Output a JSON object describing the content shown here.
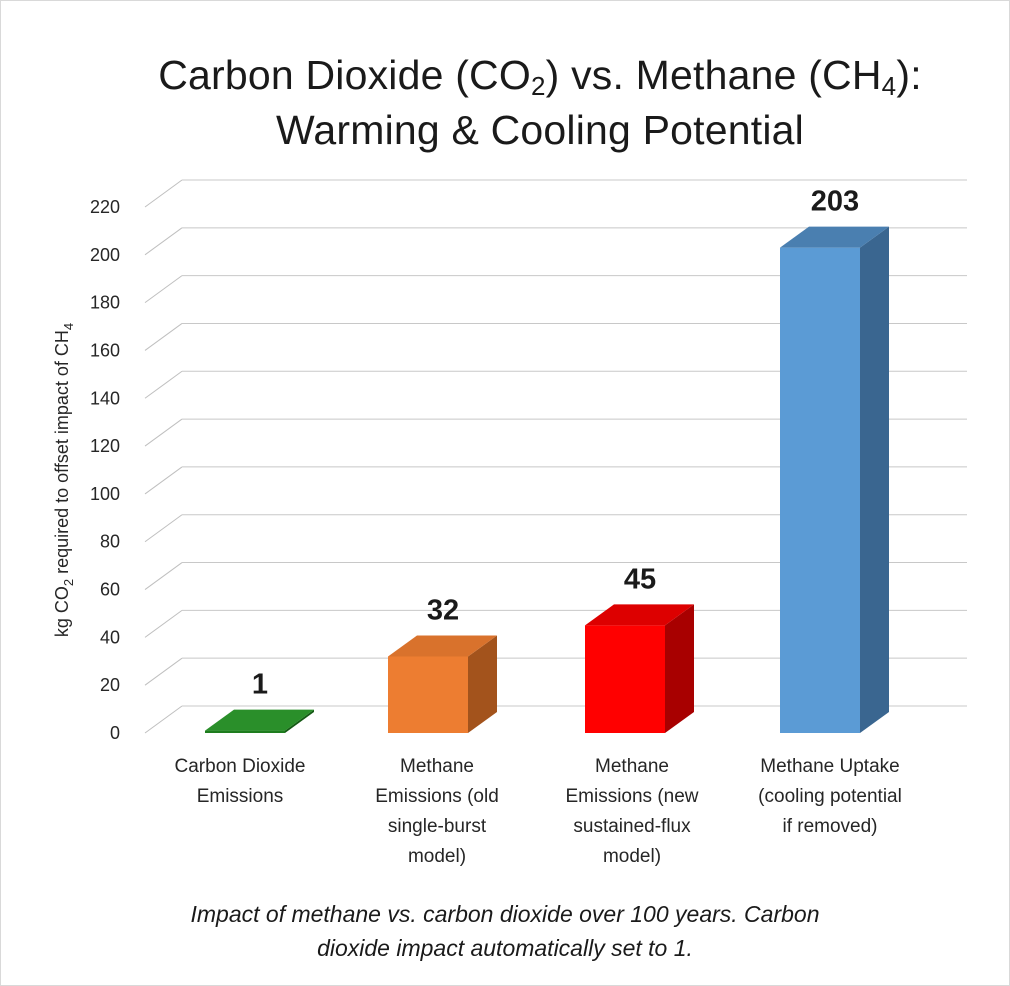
{
  "chart_data": {
    "type": "bar",
    "title": {
      "line1_pre": "Carbon Dioxide (CO",
      "line1_sub1": "2",
      "line1_mid": ") vs. Methane (CH",
      "line1_sub2": "4",
      "line1_post": "):",
      "line2": "Warming & Cooling Potential"
    },
    "ylabel": {
      "pre": "kg CO",
      "sub1": "2",
      "mid": " required to offset impact of CH",
      "sub2": "4"
    },
    "ylim": [
      0,
      220
    ],
    "yticks": [
      0,
      20,
      40,
      60,
      80,
      100,
      120,
      140,
      160,
      180,
      200,
      220
    ],
    "grid": true,
    "categories": [
      [
        "Carbon Dioxide",
        "Emissions"
      ],
      [
        "Methane",
        "Emissions (old",
        "single-burst",
        "model)"
      ],
      [
        "Methane",
        "Emissions (new",
        "sustained-flux",
        "model)"
      ],
      [
        "Methane Uptake",
        "(cooling potential",
        "if removed)"
      ]
    ],
    "values": [
      1,
      32,
      45,
      203
    ],
    "data_labels": [
      "1",
      "32",
      "45",
      "203"
    ],
    "colors": [
      {
        "front": "#1e7d1e",
        "side": "#145a14",
        "top": "#2a8f2a"
      },
      {
        "front": "#ed7d31",
        "side": "#a3531c",
        "top": "#d9722c"
      },
      {
        "front": "#ff0000",
        "side": "#a80000",
        "top": "#dd0000"
      },
      {
        "front": "#5b9bd5",
        "side": "#3a6690",
        "top": "#4a7fb0"
      }
    ]
  },
  "caption": {
    "line1": "Impact of methane vs. carbon dioxide over 100 years. Carbon",
    "line2": "dioxide impact automatically set to 1."
  }
}
